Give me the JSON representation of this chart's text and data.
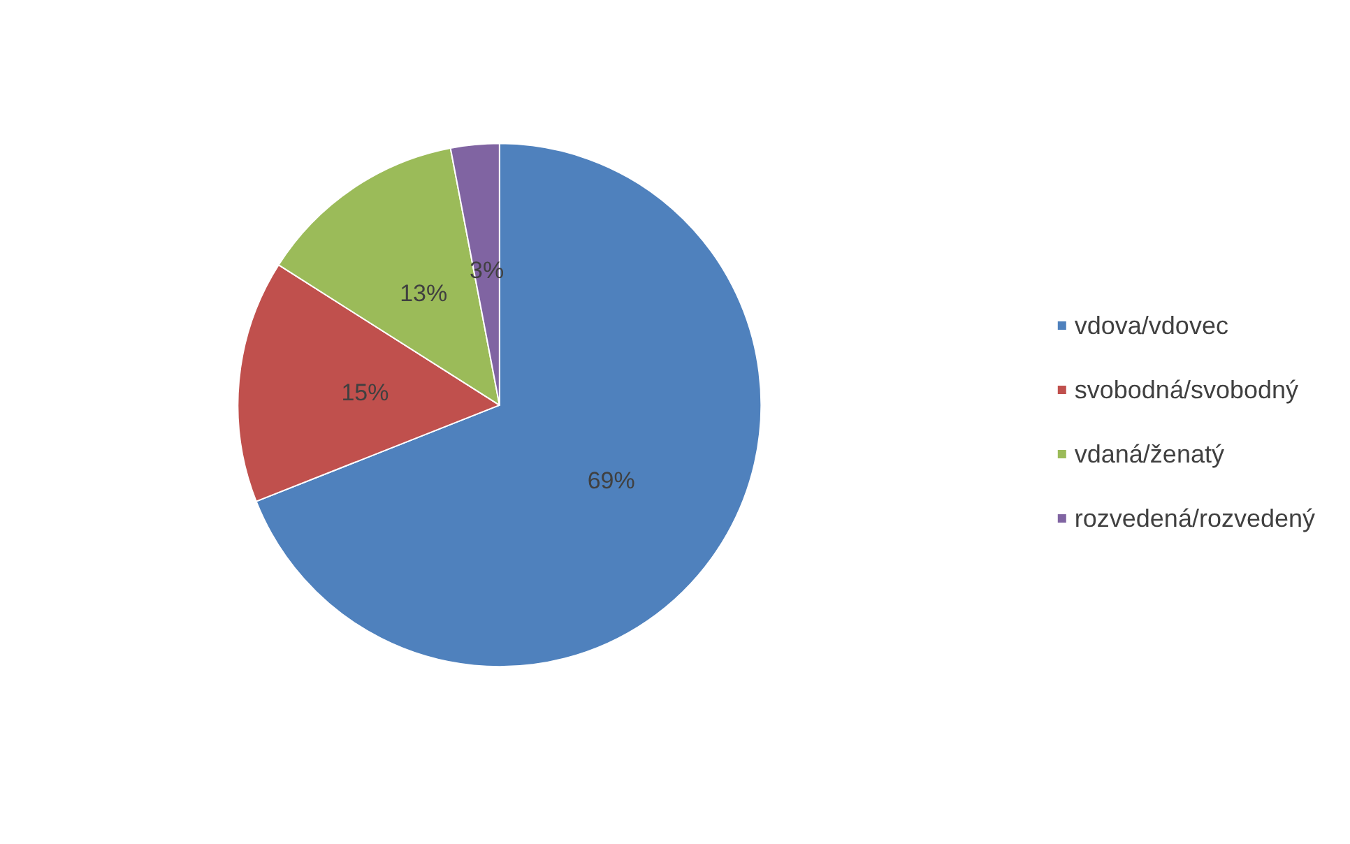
{
  "chart_data": {
    "type": "pie",
    "categories": [
      "vdova/vdovec",
      "svobodná/svobodný",
      "vdaná/ženatý",
      "rozvedená/rozvedený"
    ],
    "values": [
      69,
      15,
      13,
      3
    ],
    "colors": [
      "#4f81bd",
      "#c0504d",
      "#9bbb59",
      "#8064a2"
    ],
    "value_labels": [
      "69%",
      "15%",
      "13%",
      "3%"
    ],
    "legend": "right"
  }
}
